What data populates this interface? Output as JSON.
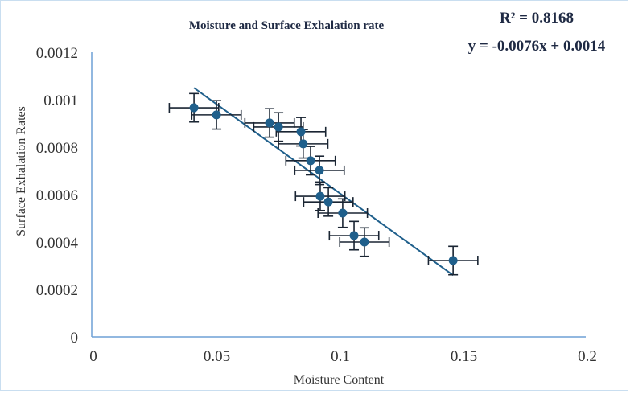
{
  "chart_data": {
    "type": "scatter",
    "title": "Moisture and Surface Exhalation rate",
    "xlabel": "Moisture Content",
    "ylabel": "Surface Exhalation Rates",
    "xlim": [
      0,
      0.2
    ],
    "ylim": [
      0,
      0.0012
    ],
    "xticks": [
      "0",
      "0.05",
      "0.1",
      "0.15",
      "0.2"
    ],
    "xtick_values": [
      0,
      0.05,
      0.1,
      0.15,
      0.2
    ],
    "yticks": [
      "0",
      "0.0002",
      "0.0004",
      "0.0006",
      "0.0008",
      "0.001",
      "0.0012"
    ],
    "ytick_values": [
      0,
      0.0002,
      0.0004,
      0.0006,
      0.0008,
      0.001,
      0.0012
    ],
    "grid": false,
    "legend": "none",
    "series": [
      {
        "name": "Surface Exhalation Rate",
        "color": "#1f5f8b",
        "points": [
          {
            "x": 0.0414,
            "y": 0.000966
          },
          {
            "x": 0.0505,
            "y": 0.000936
          },
          {
            "x": 0.072,
            "y": 0.000902
          },
          {
            "x": 0.0756,
            "y": 0.000885
          },
          {
            "x": 0.0847,
            "y": 0.000865
          },
          {
            "x": 0.0856,
            "y": 0.000814
          },
          {
            "x": 0.0886,
            "y": 0.000743
          },
          {
            "x": 0.0922,
            "y": 0.000702
          },
          {
            "x": 0.0925,
            "y": 0.000593
          },
          {
            "x": 0.0958,
            "y": 0.000569
          },
          {
            "x": 0.1016,
            "y": 0.000522
          },
          {
            "x": 0.1062,
            "y": 0.000427
          },
          {
            "x": 0.1104,
            "y": 0.0004
          },
          {
            "x": 0.1463,
            "y": 0.000322
          }
        ],
        "x_error": 0.01,
        "y_error": 6e-05
      }
    ],
    "trendline": {
      "type": "linear",
      "color": "#1f5f8b",
      "x_range": [
        0.0414,
        0.1463
      ],
      "y_start": 0.00105,
      "y_end": 0.00026,
      "equation": "y = -0.0076x + 0.0014",
      "r_squared": "R² = 0.8168"
    }
  }
}
